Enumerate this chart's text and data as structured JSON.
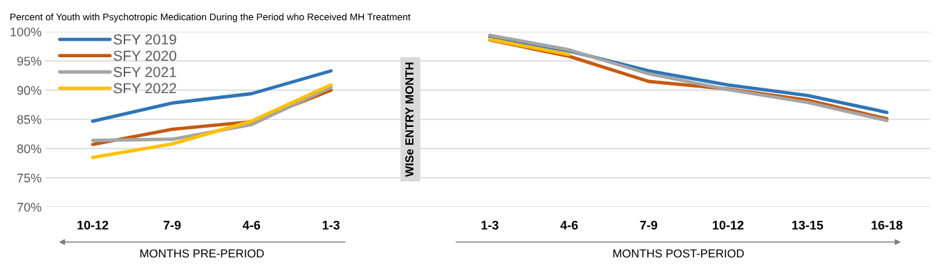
{
  "chart_data": {
    "type": "line",
    "title": "Percent of Youth with Psychotropic Medication During the Period who Received MH Treatment",
    "categories": [
      "10-12",
      "7-9",
      "4-6",
      "1-3",
      null,
      "1-3",
      "4-6",
      "7-9",
      "10-12",
      "13-15",
      "16-18"
    ],
    "series": [
      {
        "name": "SFY 2019",
        "color": "#2e75b6",
        "values": [
          84.7,
          87.8,
          89.4,
          93.3,
          null,
          99.1,
          96.7,
          93.3,
          90.9,
          89.1,
          86.2
        ]
      },
      {
        "name": "SFY 2020",
        "color": "#c55a11",
        "values": [
          80.7,
          83.3,
          84.6,
          90.0,
          null,
          98.6,
          95.8,
          91.5,
          90.2,
          88.3,
          85.1
        ]
      },
      {
        "name": "SFY 2021",
        "color": "#a5a5a5",
        "values": [
          81.4,
          81.6,
          84.1,
          90.5,
          null,
          99.4,
          96.9,
          92.8,
          90.1,
          87.9,
          84.8
        ]
      },
      {
        "name": "SFY 2022",
        "color": "#ffc000",
        "values": [
          78.5,
          80.8,
          84.7,
          90.9,
          null,
          98.7,
          96.1,
          null,
          null,
          null,
          null
        ]
      }
    ],
    "ylim": [
      70,
      100
    ],
    "yticks": [
      {
        "value": 70,
        "label": "70%"
      },
      {
        "value": 75,
        "label": "75%"
      },
      {
        "value": 80,
        "label": "80%"
      },
      {
        "value": 85,
        "label": "85%"
      },
      {
        "value": 90,
        "label": "90%"
      },
      {
        "value": 95,
        "label": "95%"
      },
      {
        "value": 100,
        "label": "100%"
      }
    ],
    "grid": "y",
    "legend": "top left",
    "marker": "none",
    "line_style": "solid",
    "annotations": [
      "WISe ENTRY MONTH",
      "MONTHS PRE-PERIOD",
      "MONTHS POST-PERIOD"
    ]
  }
}
